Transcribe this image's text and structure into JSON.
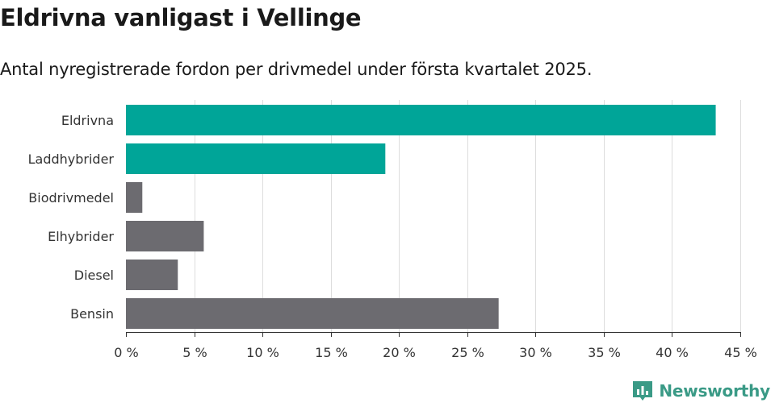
{
  "title": "Eldrivna vanligast i Vellinge",
  "subtitle": "Antal nyregistrerade fordon per drivmedel under första kvartalet 2025.",
  "brand": {
    "name": "Newsworthy",
    "icon": "newsworthy-logo-icon",
    "color": "#3a9a86"
  },
  "colors": {
    "highlight": "#00a598",
    "default": "#6c6b70",
    "grid": "#dddddd",
    "axis": "#333333"
  },
  "chart_data": {
    "type": "bar",
    "orientation": "horizontal",
    "categories": [
      "Eldrivna",
      "Laddhybrider",
      "Biodrivmedel",
      "Elhybrider",
      "Diesel",
      "Bensin"
    ],
    "values": [
      43.2,
      19.0,
      1.2,
      5.7,
      3.8,
      27.3
    ],
    "highlighted": [
      true,
      true,
      false,
      false,
      false,
      false
    ],
    "xlim": [
      0,
      45
    ],
    "xticks": [
      0,
      5,
      10,
      15,
      20,
      25,
      30,
      35,
      40,
      45
    ],
    "xtick_labels": [
      "0 %",
      "5 %",
      "10 %",
      "15 %",
      "20 %",
      "25 %",
      "30 %",
      "35 %",
      "40 %",
      "45 %"
    ],
    "grid": true,
    "legend": "none"
  }
}
